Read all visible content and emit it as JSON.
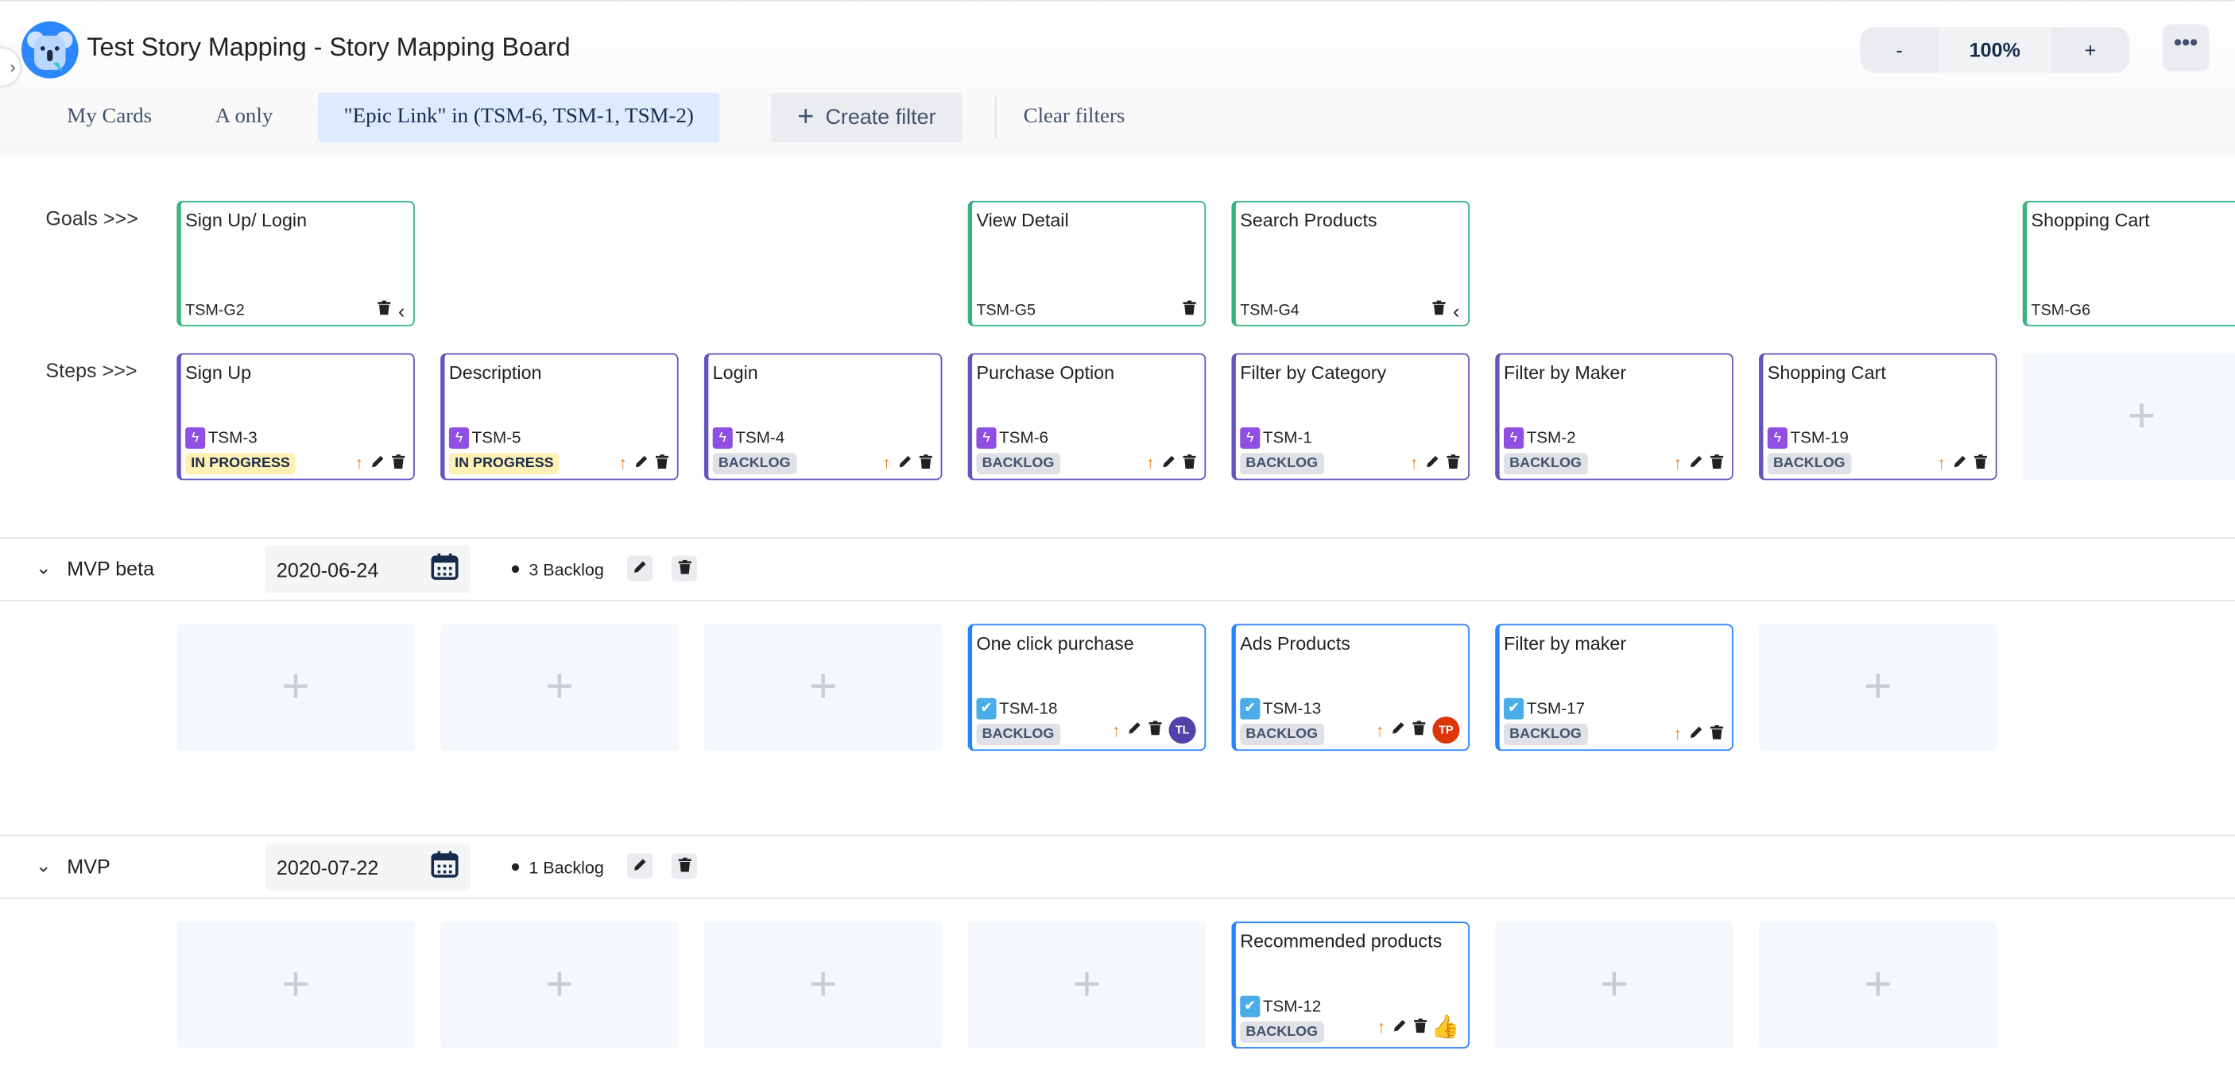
{
  "header": {
    "title": "Test Story Mapping - Story Mapping Board",
    "zoom": {
      "minus": "-",
      "value": "100%",
      "plus": "+"
    },
    "more": "•••"
  },
  "filters": {
    "items": [
      "My Cards",
      "A only",
      "\"Epic Link\" in (TSM-6, TSM-1, TSM-2)"
    ],
    "active_index": 2,
    "create": "Create filter",
    "clear": "Clear filters"
  },
  "labels": {
    "goals": "Goals >>>",
    "steps": "Steps >>>"
  },
  "colors": {
    "goal": "#36b37e",
    "step": "#6554c0",
    "story": "#2684ff",
    "epic_icon": "#904ee2",
    "story_icon": "#4bade8",
    "priority": "#f07f1a",
    "in_progress_bg": "#fff0b3",
    "backlog_bg": "#dfe1e6"
  },
  "goals": [
    {
      "title": "Sign Up/ Login",
      "key": "TSM-G2",
      "icons": [
        "trash-icon",
        "chevron-left-icon"
      ]
    },
    null,
    null,
    {
      "title": "View Detail",
      "key": "TSM-G5",
      "icons": [
        "trash-icon"
      ]
    },
    {
      "title": "Search Products",
      "key": "TSM-G4",
      "icons": [
        "trash-icon",
        "chevron-left-icon"
      ]
    },
    null,
    null,
    {
      "title": "Shopping Cart",
      "key": "TSM-G6",
      "icons": []
    }
  ],
  "steps": [
    {
      "title": "Sign Up",
      "key": "TSM-3",
      "status": "IN PROGRESS"
    },
    {
      "title": "Description",
      "key": "TSM-5",
      "status": "IN PROGRESS"
    },
    {
      "title": "Login",
      "key": "TSM-4",
      "status": "BACKLOG"
    },
    {
      "title": "Purchase Option",
      "key": "TSM-6",
      "status": "BACKLOG"
    },
    {
      "title": "Filter by Category",
      "key": "TSM-1",
      "status": "BACKLOG"
    },
    {
      "title": "Filter by Maker",
      "key": "TSM-2",
      "status": "BACKLOG"
    },
    {
      "title": "Shopping Cart",
      "key": "TSM-19",
      "status": "BACKLOG"
    },
    null
  ],
  "add_symbol": "+",
  "releases": [
    {
      "name": "MVP beta",
      "date": "2020-06-24",
      "backlog": "3 Backlog",
      "cells": [
        null,
        null,
        null,
        {
          "title": "One click purchase",
          "key": "TSM-18",
          "status": "BACKLOG",
          "assignee": {
            "initials": "TL",
            "color": "#5243aa"
          }
        },
        {
          "title": "Ads Products",
          "key": "TSM-13",
          "status": "BACKLOG",
          "assignee": {
            "initials": "TP",
            "color": "#de350b"
          }
        },
        {
          "title": "Filter by maker",
          "key": "TSM-17",
          "status": "BACKLOG"
        },
        null
      ]
    },
    {
      "name": "MVP",
      "date": "2020-07-22",
      "backlog": "1 Backlog",
      "cells": [
        null,
        null,
        null,
        null,
        {
          "title": "Recommended products",
          "key": "TSM-12",
          "status": "BACKLOG",
          "cursor": true
        },
        null,
        null
      ]
    }
  ]
}
